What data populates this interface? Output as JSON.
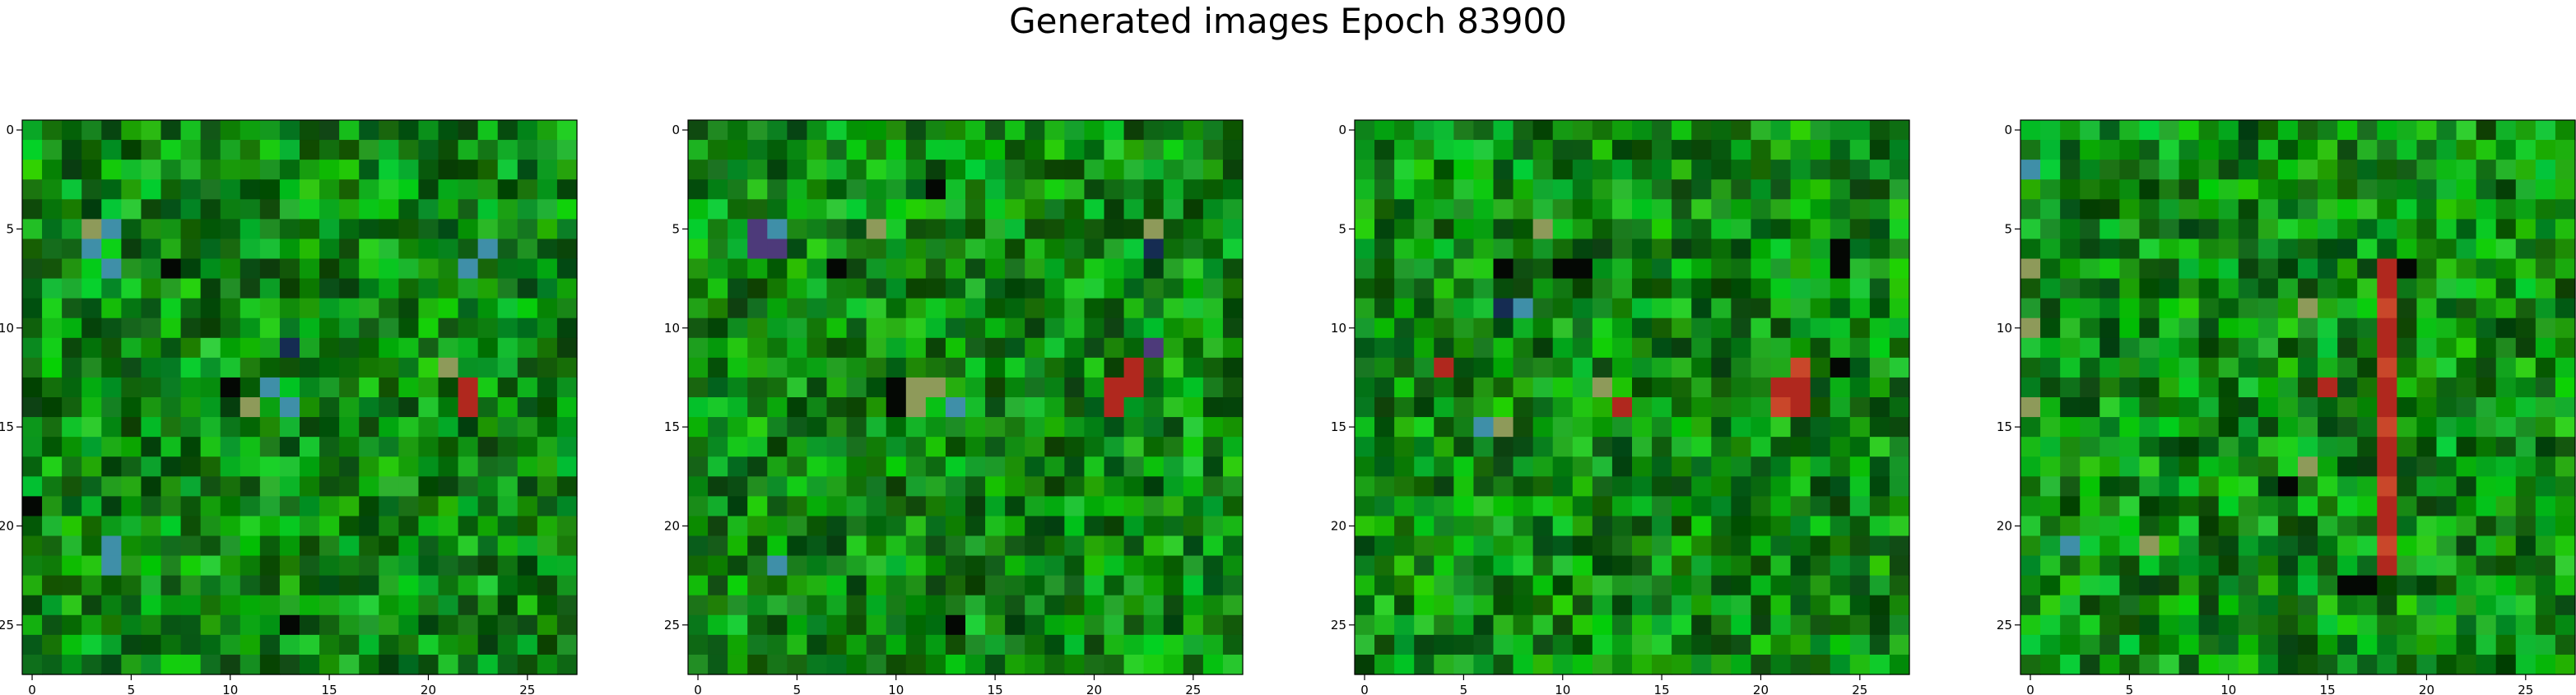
{
  "figure": {
    "suptitle": "Generated images Epoch 83900"
  },
  "colors": {
    "dark_green": "#0e4a10",
    "mid_green": "#1a7a1e",
    "bright_green": "#2fb12f",
    "cyan_blue": "#3f8fa8",
    "navy": "#152c52",
    "khaki": "#8e9a5a",
    "red": "#b0281e",
    "orange_red": "#c9472a",
    "black": "#040804",
    "purple": "#4d3a7a"
  },
  "chart_data": [
    {
      "type": "heatmap",
      "title": "",
      "xlabel": "",
      "ylabel": "",
      "grid_size": 28,
      "xlim": [
        -0.5,
        27.5
      ],
      "ylim": [
        27.5,
        -0.5
      ],
      "x_ticks": [
        0,
        5,
        10,
        15,
        20,
        25
      ],
      "y_ticks": [
        0,
        5,
        10,
        15,
        20,
        25
      ],
      "base_color": "green",
      "highlights": [
        {
          "x": 3,
          "y": 5,
          "color": "khaki"
        },
        {
          "x": 4,
          "y": 5,
          "color": "cyan_blue"
        },
        {
          "x": 3,
          "y": 6,
          "color": "cyan_blue"
        },
        {
          "x": 4,
          "y": 7,
          "color": "cyan_blue"
        },
        {
          "x": 7,
          "y": 7,
          "color": "black"
        },
        {
          "x": 10,
          "y": 13,
          "color": "black"
        },
        {
          "x": 11,
          "y": 14,
          "color": "khaki"
        },
        {
          "x": 12,
          "y": 13,
          "color": "cyan_blue"
        },
        {
          "x": 13,
          "y": 14,
          "color": "cyan_blue"
        },
        {
          "x": 13,
          "y": 11,
          "color": "navy"
        },
        {
          "x": 22,
          "y": 13,
          "color": "red"
        },
        {
          "x": 22,
          "y": 14,
          "color": "red"
        },
        {
          "x": 21,
          "y": 12,
          "color": "khaki"
        },
        {
          "x": 23,
          "y": 6,
          "color": "cyan_blue"
        },
        {
          "x": 22,
          "y": 7,
          "color": "cyan_blue"
        },
        {
          "x": 0,
          "y": 19,
          "color": "black"
        },
        {
          "x": 4,
          "y": 21,
          "color": "cyan_blue"
        },
        {
          "x": 4,
          "y": 22,
          "color": "cyan_blue"
        },
        {
          "x": 13,
          "y": 25,
          "color": "black"
        },
        {
          "x": 12,
          "y": 18,
          "color": "bright_green"
        },
        {
          "x": 18,
          "y": 18,
          "color": "bright_green"
        },
        {
          "x": 19,
          "y": 18,
          "color": "bright_green"
        }
      ]
    },
    {
      "type": "heatmap",
      "title": "",
      "xlabel": "",
      "ylabel": "",
      "grid_size": 28,
      "xlim": [
        -0.5,
        27.5
      ],
      "ylim": [
        27.5,
        -0.5
      ],
      "x_ticks": [
        0,
        5,
        10,
        15,
        20,
        25
      ],
      "y_ticks": [
        0,
        5,
        10,
        15,
        20,
        25
      ],
      "base_color": "green",
      "highlights": [
        {
          "x": 3,
          "y": 5,
          "color": "purple"
        },
        {
          "x": 3,
          "y": 6,
          "color": "purple"
        },
        {
          "x": 4,
          "y": 6,
          "color": "purple"
        },
        {
          "x": 4,
          "y": 5,
          "color": "cyan_blue"
        },
        {
          "x": 7,
          "y": 7,
          "color": "black"
        },
        {
          "x": 9,
          "y": 5,
          "color": "khaki"
        },
        {
          "x": 12,
          "y": 3,
          "color": "black"
        },
        {
          "x": 10,
          "y": 13,
          "color": "black"
        },
        {
          "x": 10,
          "y": 14,
          "color": "black"
        },
        {
          "x": 11,
          "y": 13,
          "color": "khaki"
        },
        {
          "x": 12,
          "y": 13,
          "color": "khaki"
        },
        {
          "x": 11,
          "y": 14,
          "color": "khaki"
        },
        {
          "x": 13,
          "y": 14,
          "color": "cyan_blue"
        },
        {
          "x": 21,
          "y": 13,
          "color": "red"
        },
        {
          "x": 22,
          "y": 13,
          "color": "red"
        },
        {
          "x": 22,
          "y": 12,
          "color": "red"
        },
        {
          "x": 21,
          "y": 14,
          "color": "red"
        },
        {
          "x": 23,
          "y": 11,
          "color": "purple"
        },
        {
          "x": 23,
          "y": 6,
          "color": "navy"
        },
        {
          "x": 23,
          "y": 5,
          "color": "khaki"
        },
        {
          "x": 4,
          "y": 22,
          "color": "cyan_blue"
        },
        {
          "x": 13,
          "y": 25,
          "color": "black"
        }
      ]
    },
    {
      "type": "heatmap",
      "title": "",
      "xlabel": "",
      "ylabel": "",
      "grid_size": 28,
      "xlim": [
        -0.5,
        27.5
      ],
      "ylim": [
        27.5,
        -0.5
      ],
      "x_ticks": [
        0,
        5,
        10,
        15,
        20,
        25
      ],
      "y_ticks": [
        0,
        5,
        10,
        15,
        20,
        25
      ],
      "base_color": "green",
      "highlights": [
        {
          "x": 9,
          "y": 5,
          "color": "khaki"
        },
        {
          "x": 7,
          "y": 7,
          "color": "black"
        },
        {
          "x": 10,
          "y": 7,
          "color": "black"
        },
        {
          "x": 11,
          "y": 7,
          "color": "black"
        },
        {
          "x": 24,
          "y": 7,
          "color": "black"
        },
        {
          "x": 24,
          "y": 6,
          "color": "black"
        },
        {
          "x": 7,
          "y": 9,
          "color": "navy"
        },
        {
          "x": 8,
          "y": 9,
          "color": "cyan_blue"
        },
        {
          "x": 12,
          "y": 13,
          "color": "khaki"
        },
        {
          "x": 13,
          "y": 14,
          "color": "red"
        },
        {
          "x": 21,
          "y": 13,
          "color": "red"
        },
        {
          "x": 22,
          "y": 14,
          "color": "red"
        },
        {
          "x": 22,
          "y": 13,
          "color": "red"
        },
        {
          "x": 21,
          "y": 14,
          "color": "orange_red"
        },
        {
          "x": 22,
          "y": 12,
          "color": "orange_red"
        },
        {
          "x": 7,
          "y": 15,
          "color": "khaki"
        },
        {
          "x": 6,
          "y": 15,
          "color": "cyan_blue"
        },
        {
          "x": 4,
          "y": 12,
          "color": "red"
        },
        {
          "x": 24,
          "y": 12,
          "color": "black"
        }
      ]
    },
    {
      "type": "heatmap",
      "title": "",
      "xlabel": "",
      "ylabel": "",
      "grid_size": 28,
      "xlim": [
        -0.5,
        27.5
      ],
      "ylim": [
        27.5,
        -0.5
      ],
      "x_ticks": [
        0,
        5,
        10,
        15,
        20,
        25
      ],
      "y_ticks": [
        0,
        5,
        10,
        15,
        20,
        25
      ],
      "base_color": "green",
      "vertical_band": {
        "x": 18,
        "y_from": 7,
        "y_to": 22,
        "color": "red"
      },
      "highlights": [
        {
          "x": 19,
          "y": 7,
          "color": "black"
        },
        {
          "x": 15,
          "y": 13,
          "color": "red"
        },
        {
          "x": 14,
          "y": 9,
          "color": "khaki"
        },
        {
          "x": 13,
          "y": 18,
          "color": "black"
        },
        {
          "x": 14,
          "y": 17,
          "color": "khaki"
        },
        {
          "x": 6,
          "y": 21,
          "color": "khaki"
        },
        {
          "x": 2,
          "y": 21,
          "color": "cyan_blue"
        },
        {
          "x": 16,
          "y": 23,
          "color": "black"
        },
        {
          "x": 17,
          "y": 23,
          "color": "black"
        },
        {
          "x": 0,
          "y": 10,
          "color": "khaki"
        },
        {
          "x": 0,
          "y": 14,
          "color": "khaki"
        },
        {
          "x": 0,
          "y": 2,
          "color": "cyan_blue"
        },
        {
          "x": 0,
          "y": 7,
          "color": "khaki"
        }
      ]
    }
  ]
}
